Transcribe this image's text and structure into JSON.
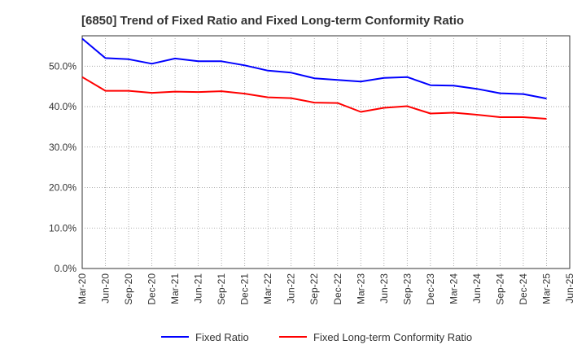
{
  "chart_data": {
    "type": "line",
    "title": "[6850]  Trend of Fixed Ratio and Fixed Long-term Conformity Ratio",
    "xlabel": "",
    "ylabel": "",
    "ylim": [
      0,
      57.5
    ],
    "y_ticks": [
      "0.0%",
      "10.0%",
      "20.0%",
      "30.0%",
      "40.0%",
      "50.0%"
    ],
    "y_tick_values": [
      0,
      10,
      20,
      30,
      40,
      50
    ],
    "grid": true,
    "legend_position": "bottom",
    "categories": [
      "Mar-20",
      "Jun-20",
      "Sep-20",
      "Dec-20",
      "Mar-21",
      "Jun-21",
      "Sep-21",
      "Dec-21",
      "Mar-22",
      "Jun-22",
      "Sep-22",
      "Dec-22",
      "Mar-23",
      "Jun-23",
      "Sep-23",
      "Dec-23",
      "Mar-24",
      "Jun-24",
      "Sep-24",
      "Dec-24",
      "Mar-25",
      "Jun-25"
    ],
    "series": [
      {
        "name": "Fixed Ratio",
        "color": "#0000ff",
        "values": [
          56.8,
          52.0,
          51.7,
          50.6,
          51.9,
          51.2,
          51.2,
          50.2,
          48.9,
          48.4,
          47.0,
          46.6,
          46.2,
          47.1,
          47.3,
          45.3,
          45.2,
          44.4,
          43.3,
          43.1,
          42.0,
          null
        ]
      },
      {
        "name": "Fixed Long-term Conformity Ratio",
        "color": "#ff0000",
        "values": [
          47.3,
          43.9,
          43.9,
          43.4,
          43.7,
          43.6,
          43.8,
          43.2,
          42.3,
          42.1,
          41.0,
          40.9,
          38.7,
          39.7,
          40.1,
          38.3,
          38.5,
          38.0,
          37.4,
          37.4,
          37.0,
          null
        ]
      }
    ]
  }
}
